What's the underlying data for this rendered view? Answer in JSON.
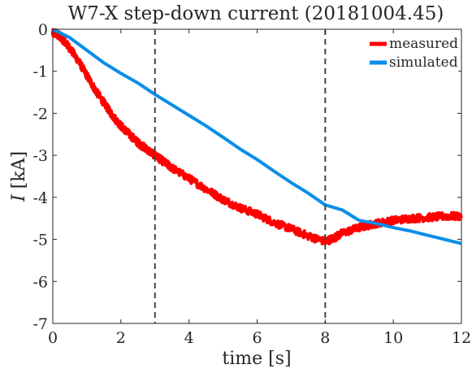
{
  "chart_data": {
    "type": "line",
    "title": "W7-X step-down current (20181004.45)",
    "xlabel": "time [s]",
    "ylabel_var": "I",
    "ylabel_unit": "[kA]",
    "xlim": [
      0,
      12
    ],
    "ylim": [
      -7,
      0
    ],
    "x_ticks": [
      0,
      2,
      4,
      6,
      8,
      10,
      12
    ],
    "y_ticks": [
      0,
      -1,
      -2,
      -3,
      -4,
      -5,
      -6,
      -7
    ],
    "grid": false,
    "legend_position": "top-right",
    "vlines": [
      3,
      8
    ],
    "series": [
      {
        "name": "measured",
        "color": "#ff0000",
        "noise": 0.09,
        "x": [
          0,
          0.1,
          0.2,
          0.3,
          0.5,
          0.75,
          1.0,
          1.25,
          1.5,
          1.75,
          2.0,
          2.25,
          2.5,
          2.75,
          3.0,
          3.25,
          3.5,
          4.0,
          4.5,
          5.0,
          5.5,
          6.0,
          6.5,
          7.0,
          7.5,
          8.0,
          8.25,
          8.5,
          9.0,
          9.5,
          10.0,
          10.5,
          11.0,
          11.5,
          12.0
        ],
        "y": [
          -0.1,
          -0.1,
          -0.15,
          -0.25,
          -0.45,
          -0.75,
          -1.1,
          -1.45,
          -1.75,
          -2.05,
          -2.3,
          -2.5,
          -2.7,
          -2.85,
          -3.0,
          -3.15,
          -3.3,
          -3.55,
          -3.8,
          -4.05,
          -4.25,
          -4.4,
          -4.6,
          -4.75,
          -4.92,
          -5.05,
          -4.97,
          -4.85,
          -4.72,
          -4.62,
          -4.55,
          -4.5,
          -4.48,
          -4.45,
          -4.45
        ]
      },
      {
        "name": "simulated",
        "color": "#0a8eea",
        "x": [
          0,
          0.5,
          1.0,
          1.5,
          2.0,
          2.5,
          3.0,
          3.5,
          4.0,
          4.5,
          5.0,
          5.5,
          6.0,
          6.5,
          7.0,
          7.5,
          8.0,
          8.5,
          9.0,
          9.5,
          10.0,
          10.5,
          11.0,
          11.5,
          12.0
        ],
        "y": [
          0,
          -0.2,
          -0.5,
          -0.8,
          -1.05,
          -1.28,
          -1.55,
          -1.8,
          -2.05,
          -2.3,
          -2.57,
          -2.85,
          -3.1,
          -3.38,
          -3.65,
          -3.9,
          -4.18,
          -4.3,
          -4.55,
          -4.62,
          -4.72,
          -4.8,
          -4.9,
          -5.0,
          -5.1
        ]
      }
    ]
  }
}
